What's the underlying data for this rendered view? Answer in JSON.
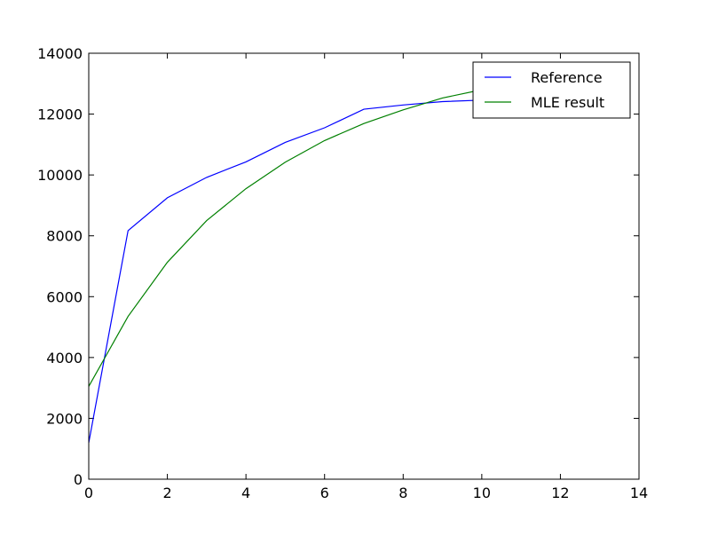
{
  "chart_data": {
    "type": "line",
    "title": "",
    "xlabel": "",
    "ylabel": "",
    "xlim": [
      0,
      14
    ],
    "ylim": [
      0,
      14000
    ],
    "xticks": [
      0,
      2,
      4,
      6,
      8,
      10,
      12,
      14
    ],
    "yticks": [
      0,
      2000,
      4000,
      6000,
      8000,
      10000,
      12000,
      14000
    ],
    "grid": false,
    "legend_position": "top-right",
    "series": [
      {
        "name": "Reference",
        "color": "#0000ff",
        "x": [
          0,
          1,
          2,
          3,
          4,
          5,
          6,
          7,
          8,
          9,
          10,
          11,
          12,
          13
        ],
        "y": [
          1200,
          8170,
          9250,
          9920,
          10430,
          11070,
          11550,
          12160,
          12300,
          12410,
          12460,
          12500,
          12530,
          12550
        ]
      },
      {
        "name": "MLE result",
        "color": "#008000",
        "x": [
          0,
          1,
          2,
          3,
          4,
          5,
          6,
          7,
          8,
          9,
          10,
          11,
          12,
          13
        ],
        "y": [
          3050,
          5350,
          7130,
          8500,
          9550,
          10420,
          11130,
          11690,
          12140,
          12530,
          12800,
          13050,
          13250,
          13400
        ]
      }
    ]
  }
}
